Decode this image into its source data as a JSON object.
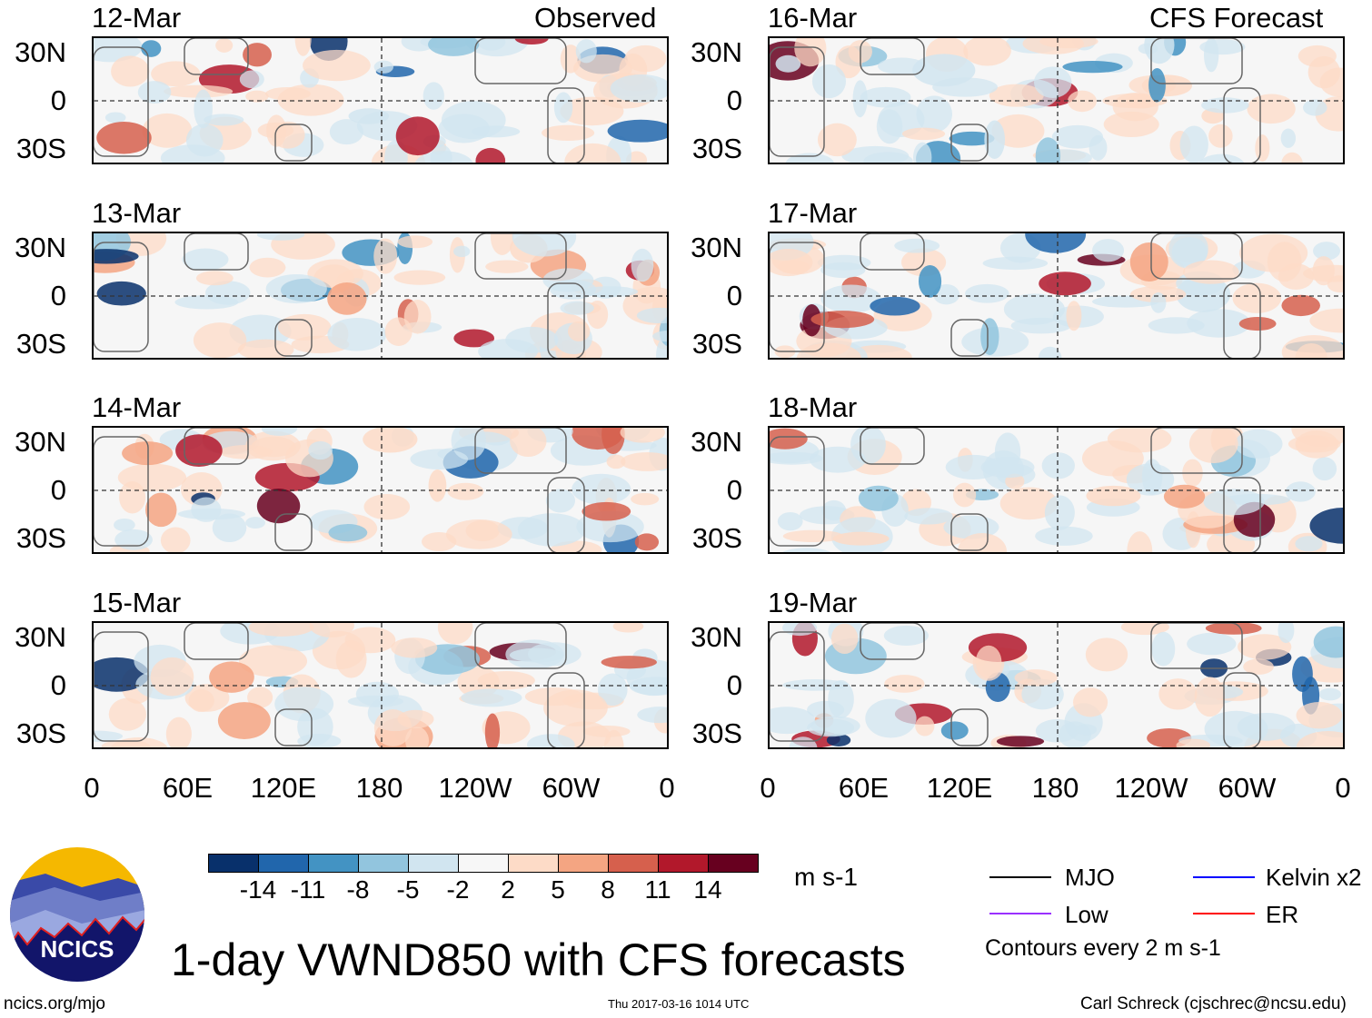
{
  "headers": {
    "observed": "Observed",
    "forecast": "CFS Forecast"
  },
  "panels": {
    "observed": [
      {
        "date": "12-Mar"
      },
      {
        "date": "13-Mar"
      },
      {
        "date": "14-Mar"
      },
      {
        "date": "15-Mar"
      }
    ],
    "forecast": [
      {
        "date": "16-Mar"
      },
      {
        "date": "17-Mar"
      },
      {
        "date": "18-Mar"
      },
      {
        "date": "19-Mar"
      }
    ]
  },
  "lat_labels": [
    "30N",
    "0",
    "30S"
  ],
  "lon_labels": [
    "0",
    "60E",
    "120E",
    "180",
    "120W",
    "60W",
    "0"
  ],
  "colorbar": {
    "colors": [
      "#08306b",
      "#2166ac",
      "#4393c3",
      "#92c5de",
      "#d1e5f0",
      "#f7f7f7",
      "#fddbc7",
      "#f4a582",
      "#d6604d",
      "#b2182b",
      "#67001f"
    ],
    "labels": [
      "-14",
      "-11",
      "-8",
      "-5",
      "-2",
      "2",
      "5",
      "8",
      "11",
      "14"
    ],
    "units": "m s-1"
  },
  "legend": {
    "items": [
      {
        "label": "MJO",
        "color": "#000000"
      },
      {
        "label": "Kelvin x2",
        "color": "#0000ff"
      },
      {
        "label": "Low",
        "color": "#9a30ff"
      },
      {
        "label": "ER",
        "color": "#ff0000"
      }
    ],
    "contours": "Contours every 2 m s-1"
  },
  "title": "1-day VWND850 with CFS forecasts",
  "logo_text": "NCICS",
  "footer": {
    "url": "ncics.org/mjo",
    "timestamp": "Thu 2017-03-16 1014 UTC",
    "author": "Carl Schreck (cjschrec@ncsu.edu)"
  }
}
